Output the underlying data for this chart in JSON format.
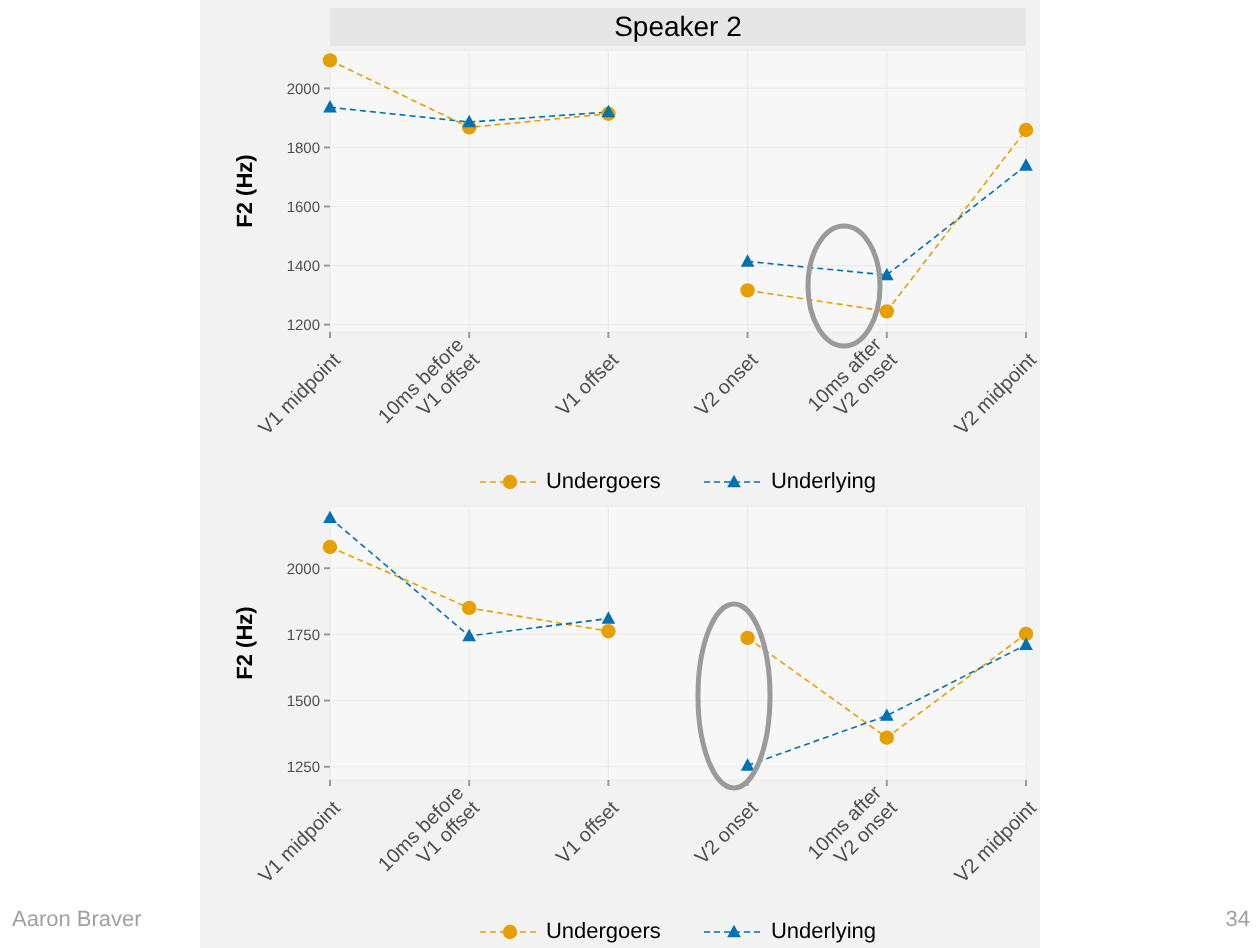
{
  "chart_data": [
    {
      "type": "line",
      "title": "Speaker 2",
      "ylabel": "F2 (Hz)",
      "categories": [
        "V1 midpoint",
        "10ms before V1 offset",
        "V1 offset",
        "V2 onset",
        "10ms after V2 onset",
        "V2 midpoint"
      ],
      "series": [
        {
          "name": "Undergoers",
          "color": "#e69f00",
          "marker": "circle",
          "values": [
            2095,
            1868,
            1914,
            null,
            null,
            null
          ]
        },
        {
          "color": "#e69f00",
          "marker": "circle",
          "values": [
            null,
            null,
            null,
            1316,
            1245,
            1859
          ]
        },
        {
          "name": "Underlying",
          "color": "#0072b2",
          "marker": "triangle",
          "values": [
            1936,
            1886,
            1920,
            null,
            null,
            null
          ]
        },
        {
          "color": "#0072b2",
          "marker": "triangle",
          "values": [
            null,
            null,
            null,
            1414,
            1368,
            1739
          ]
        }
      ],
      "ylim": [
        1175,
        2130
      ],
      "yticks": [
        1200,
        1400,
        1600,
        1800,
        2000
      ],
      "grid": true,
      "legend": "bottom",
      "line_style": "dashed"
    },
    {
      "type": "line",
      "ylabel": "F2 (Hz)",
      "categories": [
        "V1 midpoint",
        "10ms before V1 offset",
        "V1 offset",
        "V2 onset",
        "10ms after V2 onset",
        "V2 midpoint"
      ],
      "series": [
        {
          "name": "Undergoers",
          "color": "#e69f00",
          "marker": "circle",
          "values": [
            2080,
            1850,
            1762,
            null,
            null,
            null
          ]
        },
        {
          "color": "#e69f00",
          "marker": "circle",
          "values": [
            null,
            null,
            null,
            1737,
            1360,
            1752
          ]
        },
        {
          "name": "Underlying",
          "color": "#0072b2",
          "marker": "triangle",
          "values": [
            2190,
            1744,
            1810,
            null,
            null,
            null
          ]
        },
        {
          "color": "#0072b2",
          "marker": "triangle",
          "values": [
            null,
            null,
            null,
            1255,
            1443,
            1711
          ]
        }
      ],
      "ylim": [
        1200,
        2235
      ],
      "yticks": [
        1250,
        1500,
        1750,
        2000
      ],
      "grid": true,
      "legend": "bottom",
      "line_style": "dashed",
      "annotations": [
        "Aaron Braver",
        "34"
      ]
    }
  ]
}
